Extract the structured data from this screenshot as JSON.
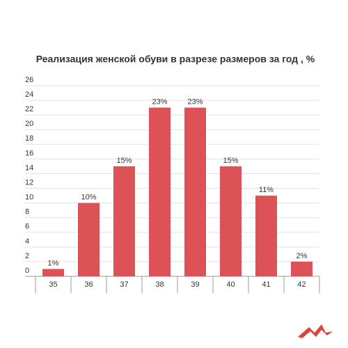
{
  "chart_data": {
    "type": "bar",
    "title": "Реализация женской обуви в разрезе размеров за год , %",
    "categories": [
      "35",
      "36",
      "37",
      "38",
      "39",
      "40",
      "41",
      "42"
    ],
    "values": [
      1,
      10,
      15,
      23,
      23,
      15,
      11,
      2
    ],
    "value_labels": [
      "1%",
      "10%",
      "15%",
      "23%",
      "23%",
      "15%",
      "11%",
      "2%"
    ],
    "color": "#dc5257",
    "ylim": [
      0,
      26
    ],
    "yticks": [
      0,
      2,
      4,
      6,
      8,
      10,
      12,
      14,
      16,
      18,
      20,
      22,
      24,
      26
    ],
    "grid": true
  }
}
